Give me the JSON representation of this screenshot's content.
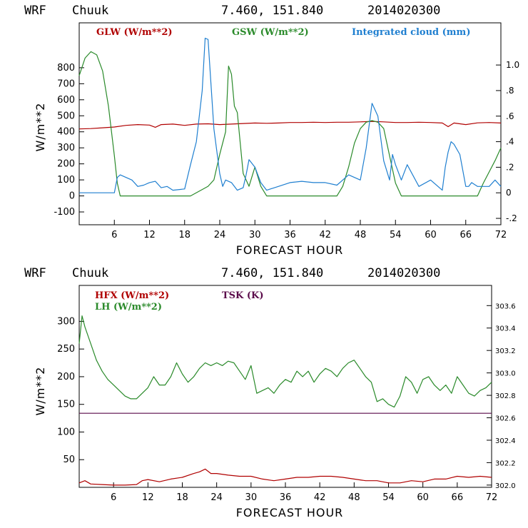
{
  "chart_data": [
    {
      "type": "line",
      "header": {
        "model": "WRF",
        "station": "Chuuk",
        "coords": "7.460, 151.840",
        "init": "2014020300"
      },
      "xlabel": "FORECAST HOUR",
      "ylabel": "W/m**2",
      "xlim": [
        0,
        72
      ],
      "ylim": [
        -180,
        1080
      ],
      "xticks": [
        6,
        12,
        18,
        24,
        30,
        36,
        42,
        48,
        54,
        60,
        66,
        72
      ],
      "yticks": [
        -100,
        0,
        100,
        200,
        300,
        400,
        500,
        600,
        700,
        800
      ],
      "y2lim": [
        -0.25,
        1.33
      ],
      "y2ticks": [
        "-.2",
        "0",
        ".2",
        ".4",
        ".6",
        ".8",
        "1.0"
      ],
      "y2tick_values": [
        -0.2,
        0,
        0.2,
        0.4,
        0.6,
        0.8,
        1.0
      ],
      "grid": false,
      "legend_position": "top",
      "series": [
        {
          "name": "GLW (W/m**2)",
          "color": "#b00000",
          "axis": "left",
          "x": [
            0,
            2,
            4,
            6,
            8,
            10,
            12,
            13,
            14,
            16,
            18,
            20,
            22,
            24,
            26,
            28,
            30,
            32,
            34,
            36,
            38,
            40,
            42,
            44,
            46,
            48,
            50,
            52,
            54,
            56,
            58,
            60,
            62,
            63,
            64,
            66,
            68,
            70,
            72
          ],
          "values": [
            418,
            420,
            425,
            430,
            440,
            445,
            442,
            428,
            445,
            448,
            440,
            448,
            450,
            445,
            448,
            452,
            455,
            453,
            455,
            458,
            458,
            460,
            458,
            460,
            460,
            462,
            465,
            462,
            458,
            458,
            460,
            458,
            455,
            432,
            455,
            445,
            456,
            458,
            455
          ]
        },
        {
          "name": "GSW (W/m**2)",
          "color": "#2a8a2a",
          "axis": "left",
          "x": [
            0,
            1,
            2,
            3,
            4,
            5,
            6,
            6.5,
            7,
            8,
            10,
            12,
            14,
            16,
            18,
            19,
            20,
            21,
            22,
            23,
            24,
            25,
            25.5,
            26,
            26.5,
            27,
            27.5,
            28,
            29,
            30,
            31,
            32,
            34,
            36,
            40,
            44,
            45,
            46,
            47,
            48,
            49,
            50,
            51,
            52,
            53,
            54,
            55,
            56,
            58,
            60,
            62,
            64,
            66,
            68,
            69,
            70,
            71,
            72
          ],
          "values": [
            750,
            860,
            900,
            880,
            780,
            560,
            250,
            80,
            0,
            0,
            0,
            0,
            0,
            0,
            0,
            0,
            20,
            40,
            60,
            100,
            260,
            400,
            810,
            760,
            560,
            520,
            330,
            140,
            60,
            180,
            60,
            0,
            0,
            0,
            0,
            0,
            60,
            180,
            330,
            420,
            460,
            470,
            460,
            420,
            250,
            80,
            0,
            0,
            0,
            0,
            0,
            0,
            0,
            0,
            80,
            150,
            220,
            300
          ]
        },
        {
          "name": "Integrated cloud (mm)",
          "color": "#1f7fd0",
          "axis": "right",
          "x": [
            0,
            6,
            6.5,
            7,
            8,
            9,
            10,
            11,
            12,
            13,
            14,
            15,
            16,
            18,
            19,
            20,
            21,
            21.5,
            22,
            23,
            24,
            24.5,
            25,
            26,
            27,
            28,
            28.5,
            29,
            30,
            31,
            32,
            34,
            36,
            38,
            40,
            42,
            44,
            46,
            48,
            49,
            50,
            51,
            52,
            53,
            53.5,
            54,
            55,
            56,
            58,
            60,
            62,
            62.5,
            63,
            63.5,
            64,
            65,
            66,
            66.5,
            67,
            68,
            70,
            71,
            72
          ],
          "values": [
            0,
            0,
            0.12,
            0.14,
            0.12,
            0.1,
            0.05,
            0.06,
            0.08,
            0.09,
            0.04,
            0.05,
            0.02,
            0.03,
            0.22,
            0.4,
            0.8,
            1.21,
            1.2,
            0.5,
            0.15,
            0.05,
            0.1,
            0.08,
            0.02,
            0.04,
            0.14,
            0.26,
            0.2,
            0.08,
            0.02,
            0.05,
            0.08,
            0.09,
            0.08,
            0.08,
            0.06,
            0.14,
            0.1,
            0.35,
            0.7,
            0.6,
            0.25,
            0.1,
            0.3,
            0.22,
            0.1,
            0.22,
            0.05,
            0.1,
            0.02,
            0.2,
            0.32,
            0.4,
            0.38,
            0.3,
            0.05,
            0.05,
            0.08,
            0.05,
            0.05,
            0.1,
            0.05
          ]
        }
      ]
    },
    {
      "type": "line",
      "header": {
        "model": "WRF",
        "station": "Chuuk",
        "coords": "7.460, 151.840",
        "init": "2014020300"
      },
      "xlabel": "FORECAST HOUR",
      "ylabel": "W/m**2",
      "xlim": [
        0,
        72
      ],
      "ylim": [
        0,
        365
      ],
      "xticks": [
        6,
        12,
        18,
        24,
        30,
        36,
        42,
        48,
        54,
        60,
        66,
        72
      ],
      "yticks": [
        50,
        100,
        150,
        200,
        250,
        300
      ],
      "y2lim": [
        301.98,
        303.78
      ],
      "y2ticks": [
        "302.0",
        "302.2",
        "302.4",
        "302.6",
        "302.8",
        "303.0",
        "303.2",
        "303.4",
        "303.6"
      ],
      "y2tick_values": [
        302.0,
        302.2,
        302.4,
        302.6,
        302.8,
        303.0,
        303.2,
        303.4,
        303.6
      ],
      "grid": false,
      "legend_position": "top-left",
      "series": [
        {
          "name": "HFX (W/m**2)",
          "color": "#b00000",
          "axis": "left",
          "x": [
            0,
            1,
            2,
            4,
            6,
            8,
            10,
            11,
            12,
            14,
            16,
            18,
            20,
            21,
            22,
            23,
            24,
            26,
            28,
            30,
            32,
            34,
            36,
            38,
            40,
            42,
            44,
            46,
            48,
            50,
            52,
            54,
            56,
            58,
            60,
            62,
            64,
            66,
            68,
            70,
            72
          ],
          "values": [
            8,
            12,
            6,
            5,
            4,
            4,
            5,
            12,
            14,
            10,
            15,
            18,
            25,
            28,
            33,
            25,
            25,
            22,
            20,
            20,
            15,
            12,
            15,
            18,
            18,
            20,
            20,
            18,
            15,
            12,
            12,
            8,
            8,
            12,
            10,
            15,
            15,
            20,
            18,
            20,
            18
          ]
        },
        {
          "name": "LH (W/m**2)",
          "color": "#2a8a2a",
          "axis": "left",
          "x": [
            0,
            0.5,
            1,
            2,
            3,
            4,
            5,
            6,
            7,
            8,
            9,
            10,
            11,
            12,
            13,
            14,
            15,
            16,
            17,
            18,
            19,
            20,
            21,
            22,
            23,
            24,
            25,
            26,
            27,
            28,
            29,
            30,
            31,
            32,
            33,
            34,
            35,
            36,
            37,
            38,
            39,
            40,
            41,
            42,
            43,
            44,
            45,
            46,
            47,
            48,
            49,
            50,
            51,
            52,
            53,
            54,
            55,
            56,
            57,
            58,
            59,
            60,
            61,
            62,
            63,
            64,
            65,
            66,
            67,
            68,
            69,
            70,
            71,
            72
          ],
          "values": [
            260,
            310,
            290,
            260,
            230,
            210,
            195,
            185,
            175,
            165,
            160,
            160,
            170,
            180,
            200,
            185,
            185,
            200,
            225,
            205,
            190,
            200,
            215,
            225,
            220,
            225,
            220,
            228,
            225,
            210,
            195,
            220,
            170,
            175,
            180,
            170,
            185,
            195,
            190,
            210,
            200,
            210,
            190,
            205,
            215,
            210,
            200,
            215,
            225,
            230,
            215,
            200,
            190,
            155,
            160,
            150,
            145,
            165,
            200,
            190,
            170,
            195,
            200,
            185,
            175,
            185,
            170,
            200,
            185,
            170,
            165,
            175,
            180,
            190
          ]
        },
        {
          "name": "TSK (K)",
          "color": "#5a0a4a",
          "axis": "right",
          "x": [
            0,
            72
          ],
          "values": [
            302.64,
            302.64
          ]
        }
      ]
    }
  ]
}
